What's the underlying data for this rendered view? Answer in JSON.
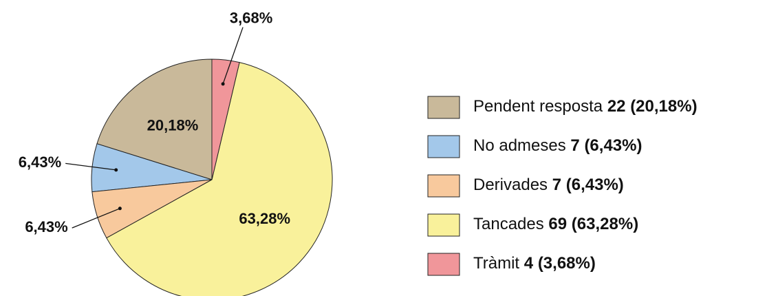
{
  "chart_data": {
    "type": "pie",
    "categories": [
      "Pendent resposta",
      "No admeses",
      "Derivades",
      "Tancades",
      "Tràmit"
    ],
    "values": [
      20.18,
      6.43,
      6.43,
      63.28,
      3.68
    ],
    "value_labels": [
      "20,18%",
      "6,43%",
      "6,43%",
      "63,28%",
      "3,68%"
    ],
    "counts": [
      22,
      7,
      7,
      69,
      4
    ],
    "legend_value_labels": [
      "(20,18%)",
      "(6,43%)",
      "(6,43%)",
      "(63,28%)",
      "(3,68%)"
    ],
    "colors": [
      "#c9b99a",
      "#a3c8ea",
      "#f8c99d",
      "#f9f19b",
      "#f0969a"
    ]
  }
}
